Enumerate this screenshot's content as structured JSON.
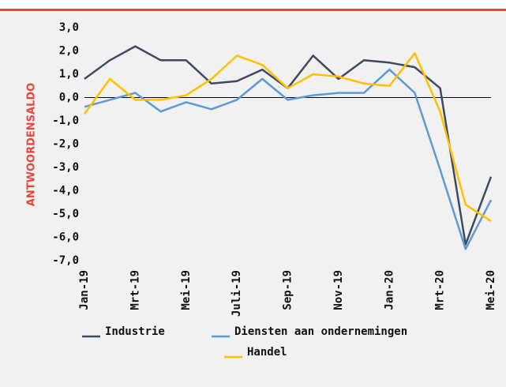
{
  "chart_data": {
    "type": "line",
    "y_axis_label": "ANTWOORDENSALDO",
    "categories": [
      "Jan-19",
      null,
      "Mrt-19",
      null,
      "Mei-19",
      null,
      "Juli-19",
      null,
      "Sep-19",
      null,
      "Nov-19",
      null,
      "Jan-20",
      null,
      "Mrt-20",
      null,
      "Mei-20"
    ],
    "series": [
      {
        "name": "Industrie",
        "color": "#3d4a5f",
        "values": [
          0.8,
          1.6,
          2.2,
          1.6,
          1.6,
          0.6,
          0.7,
          1.2,
          0.4,
          1.8,
          0.8,
          1.6,
          1.5,
          1.3,
          0.4,
          -6.3,
          -3.4
        ]
      },
      {
        "name": "Diensten aan ondernemingen",
        "color": "#5b9bd5",
        "values": [
          -0.4,
          -0.1,
          0.2,
          -0.6,
          -0.2,
          -0.5,
          -0.1,
          0.8,
          -0.1,
          0.1,
          0.2,
          0.2,
          1.2,
          0.2,
          -3.1,
          -6.5,
          -4.4
        ]
      },
      {
        "name": "Handel",
        "color": "#ffc000",
        "values": [
          -0.7,
          0.8,
          -0.1,
          -0.1,
          0.1,
          0.8,
          1.8,
          1.4,
          0.4,
          1.0,
          0.9,
          0.6,
          0.5,
          1.9,
          -0.6,
          -4.6,
          -5.3
        ]
      }
    ],
    "ylim": [
      -7,
      3
    ],
    "yticks": [
      {
        "value": 3,
        "label": "3,0"
      },
      {
        "value": 2,
        "label": "2,0"
      },
      {
        "value": 1,
        "label": "1,0"
      },
      {
        "value": 0,
        "label": "0,0"
      },
      {
        "value": -1,
        "label": "-1,0"
      },
      {
        "value": -2,
        "label": "-2,0"
      },
      {
        "value": -3,
        "label": "-3,0"
      },
      {
        "value": -4,
        "label": "-4,0"
      },
      {
        "value": -5,
        "label": "-5,0"
      },
      {
        "value": -6,
        "label": "-6,0"
      },
      {
        "value": -7,
        "label": "-7,0"
      }
    ]
  }
}
